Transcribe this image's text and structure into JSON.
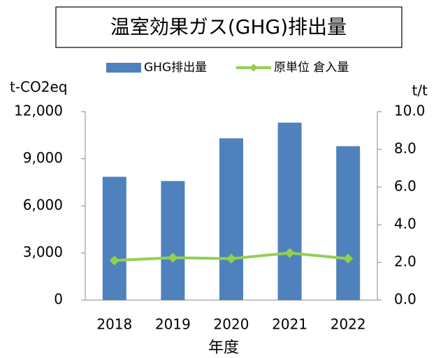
{
  "chart_data": {
    "type": "bar",
    "title": "温室効果ガス(GHG)排出量",
    "x_label": "年度",
    "y_label": "t-CO2eq",
    "y2_label": "t/t",
    "categories": [
      "2018",
      "2019",
      "2020",
      "2021",
      "2022"
    ],
    "series": [
      {
        "name": "GHG排出量",
        "color": "#4f81bd",
        "type": "bar",
        "values": [
          7850,
          7580,
          10300,
          11300,
          9800
        ]
      },
      {
        "name": "原単位 倉入量",
        "color": "#92d050",
        "type": "line",
        "axis": "y2",
        "values": [
          2.1,
          2.25,
          2.2,
          2.5,
          2.2
        ]
      }
    ],
    "ylim": [
      0,
      12000
    ],
    "yticks": [
      0,
      {
        "value": 3000,
        "label": "3,000"
      },
      {
        "value": 6000,
        "label": "6,000"
      },
      {
        "value": 9000,
        "label": "9,000"
      },
      {
        "value": 12000,
        "label": "12,000"
      }
    ],
    "y2lim": [
      0,
      10
    ],
    "y2ticks": [
      {
        "value": 0,
        "label": "0.0"
      },
      {
        "value": 2,
        "label": "2.0"
      },
      {
        "value": 4,
        "label": "4.0"
      },
      {
        "value": 6,
        "label": "6.0"
      },
      {
        "value": 8,
        "label": "8.0"
      },
      {
        "value": 10,
        "label": "10.0"
      }
    ],
    "legend": "top"
  }
}
